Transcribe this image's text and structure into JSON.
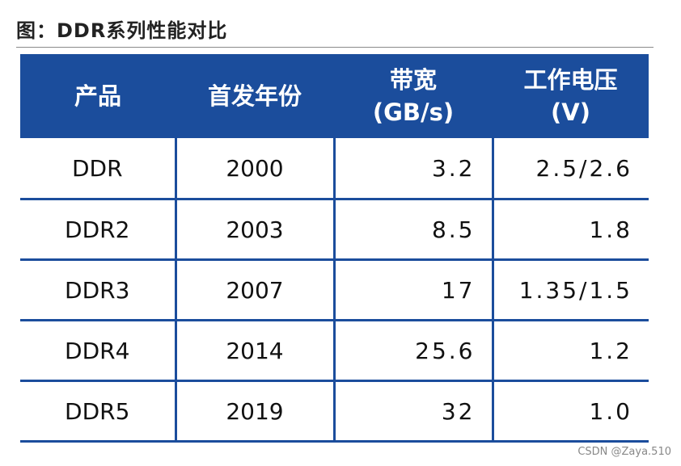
{
  "figure": {
    "title": "图：DDR系列性能对比"
  },
  "table": {
    "headers": [
      {
        "line1": "产品",
        "line2": ""
      },
      {
        "line1": "首发年份",
        "line2": ""
      },
      {
        "line1": "带宽",
        "line2": "(GB/s)"
      },
      {
        "line1": "工作电压",
        "line2": "(V)"
      }
    ],
    "rows": [
      {
        "product": "DDR",
        "year": "2000",
        "bandwidth": "3.2",
        "voltage": "2.5/2.6"
      },
      {
        "product": "DDR2",
        "year": "2003",
        "bandwidth": "8.5",
        "voltage": "1.8"
      },
      {
        "product": "DDR3",
        "year": "2007",
        "bandwidth": "17",
        "voltage": "1.35/1.5"
      },
      {
        "product": "DDR4",
        "year": "2014",
        "bandwidth": "25.6",
        "voltage": "1.2"
      },
      {
        "product": "DDR5",
        "year": "2019",
        "bandwidth": "32",
        "voltage": "1.0"
      }
    ]
  },
  "watermark": "CSDN @Zaya.510",
  "colors": {
    "header_bg": "#1b4d9c",
    "grid_line": "#1b4d9c"
  }
}
